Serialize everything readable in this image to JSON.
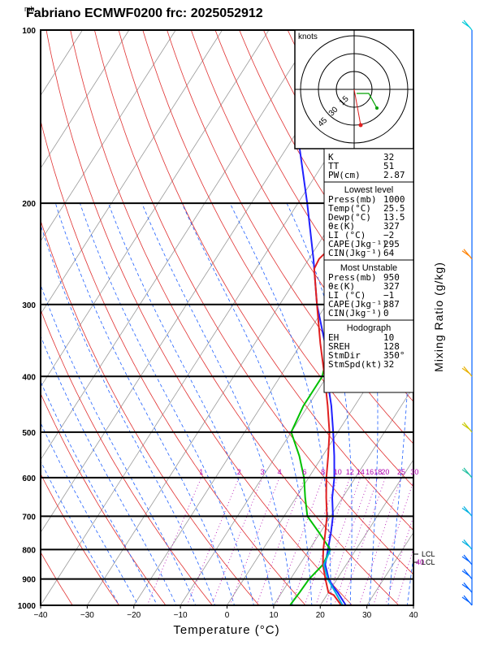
{
  "header": {
    "title": "Fabriano ECMWF0200  frc: 2025052912",
    "pressure_unit": "mb"
  },
  "chart_data": {
    "type": "line",
    "title": "Fabriano ECMWF0200  frc: 2025052912",
    "xlabel": "Temperature (°C)",
    "ylabel": "mb",
    "y_scale": "log",
    "xlim": [
      -40,
      40
    ],
    "ylim": [
      1000,
      100
    ],
    "x_ticks": [
      -40,
      -30,
      -20,
      -10,
      0,
      10,
      20,
      30,
      40
    ],
    "y_ticks": [
      1000,
      900,
      800,
      700,
      600,
      500,
      400,
      300,
      200,
      100
    ],
    "series": [
      {
        "color": "#2020ff",
        "p": [
          1000,
          950,
          925,
          900,
          850,
          800,
          750,
          700,
          650,
          600,
          550,
          500,
          450,
          400,
          350,
          300,
          250,
          200,
          150,
          125,
          110
        ],
        "t": [
          25.5,
          22,
          20,
          18.2,
          15.5,
          14,
          12.4,
          10.5,
          7.8,
          5.5,
          2.5,
          -1,
          -5,
          -10,
          -15,
          -22,
          -29,
          -38,
          -50,
          -56,
          -61
        ]
      },
      {
        "color": "#00c000",
        "p": [
          1000,
          950,
          900,
          850,
          800,
          750,
          700,
          650,
          600,
          550,
          500,
          450,
          400,
          350,
          300,
          260,
          250,
          220,
          200,
          150,
          100
        ],
        "t": [
          13.5,
          13.8,
          14.0,
          15.0,
          14.5,
          10,
          5,
          2,
          -1,
          -5,
          -10,
          -11,
          -11,
          -14,
          -18,
          -22,
          -23,
          -20.5,
          -19,
          -15.5,
          -12
        ]
      },
      {
        "color": "#e02020",
        "p": [
          1000,
          960,
          960,
          950,
          900,
          850,
          800,
          750,
          700,
          650,
          600,
          550,
          500,
          450,
          400,
          350,
          300,
          260,
          250,
          240,
          200,
          150,
          100
        ],
        "t": [
          24.5,
          21.5,
          21.5,
          20,
          17.5,
          15,
          13,
          11.2,
          9.2,
          6.5,
          3.8,
          1.2,
          -1.8,
          -5.8,
          -10.5,
          -16,
          -22,
          -27.5,
          -27.8,
          -27,
          -22,
          -15,
          -8
        ]
      },
      {
        "color": "#00b0e0",
        "p": [
          1000,
          950,
          900,
          850,
          825,
          800
        ],
        "t": [
          24.8,
          21.5,
          18.0,
          15.2,
          14.9,
          14.5
        ]
      }
    ],
    "mixing_ratio_lines": [
      1,
      2,
      3,
      4,
      6,
      8,
      10,
      12,
      14,
      16,
      18,
      20,
      25,
      30,
      35,
      40
    ],
    "lcl": [
      {
        "label": "LCL"
      },
      {
        "label": "LCL",
        "prefix": "40"
      }
    ],
    "hodograph": {
      "units": "knots",
      "rings": [
        15,
        30,
        45
      ]
    },
    "indices": {
      "K": "32",
      "TT": "51",
      "PW(cm)": "2.87",
      "lowest_level": {
        "title": "Lowest level",
        "rows": [
          [
            "Press(mb)",
            "1000"
          ],
          [
            "Temp(°C)",
            "25.5"
          ],
          [
            "Dewp(°C)",
            "13.5"
          ],
          [
            "θε(K)",
            "327"
          ],
          [
            "LI  (°C)",
            "−2"
          ],
          [
            "CAPE(Jkg⁻¹)",
            "295"
          ],
          [
            "CIN(Jkg⁻¹)",
            "64"
          ]
        ]
      },
      "most_unstable": {
        "title": "Most Unstable",
        "rows": [
          [
            "Press(mb)",
            "950"
          ],
          [
            "θε(K)",
            "327"
          ],
          [
            "LI  (°C)",
            "−1"
          ],
          [
            "CAPE(Jkg⁻¹)",
            "387"
          ],
          [
            "CIN(Jkg⁻¹)",
            "0"
          ]
        ]
      },
      "hodograph_box": {
        "title": "Hodograph",
        "rows": [
          [
            "EH",
            "10"
          ],
          [
            "SREH",
            "128"
          ],
          [
            "StmDir",
            "350°"
          ],
          [
            "StmSpd(kt)",
            "32"
          ]
        ]
      }
    },
    "wind_profile": [
      {
        "p": 1000,
        "color": "#0060ff"
      },
      {
        "p": 950,
        "color": "#0060ff"
      },
      {
        "p": 900,
        "color": "#0060ff"
      },
      {
        "p": 850,
        "color": "#0060ff"
      },
      {
        "p": 800,
        "color": "#00b0e0"
      },
      {
        "p": 700,
        "color": "#00b0e0"
      },
      {
        "p": 600,
        "color": "#20c0a0"
      },
      {
        "p": 500,
        "color": "#c8c800"
      },
      {
        "p": 400,
        "color": "#e8b000"
      },
      {
        "p": 250,
        "color": "#ff8000"
      },
      {
        "p": 100,
        "color": "#00c8d8"
      }
    ]
  },
  "side_label": "Mixing Ratio (g/kg)"
}
